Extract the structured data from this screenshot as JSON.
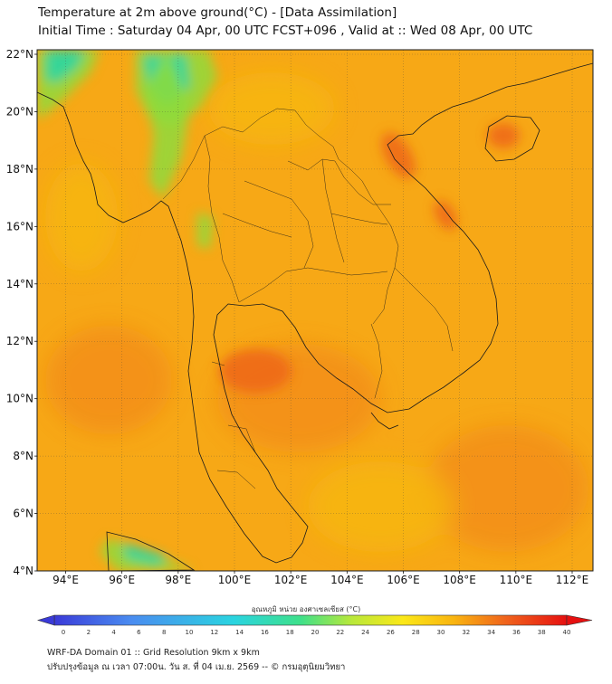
{
  "header": {
    "title_line1": "Temperature at 2m above ground(°C) - [Data Assimilation]",
    "title_line2": "Initial Time : Saturday 04 Apr, 00 UTC FCST+096 , Valid at :: Wed 08 Apr, 00 UTC"
  },
  "map": {
    "lat_labels": [
      "22°N",
      "20°N",
      "18°N",
      "16°N",
      "14°N",
      "12°N",
      "10°N",
      "8°N",
      "6°N",
      "4°N"
    ],
    "lon_labels": [
      "94°E",
      "96°E",
      "98°E",
      "100°E",
      "102°E",
      "104°E",
      "106°E",
      "108°E",
      "110°E",
      "112°E"
    ],
    "land_color": "#f6b60c",
    "sea_color": "#f7a816",
    "hot_color": "#ee6a18",
    "cool_color": "#8fda3c",
    "cold_color": "#2cd6a2"
  },
  "colorbar": {
    "label": "อุณหภูมิ หน่วย องศาเซลเซียส (°C)",
    "ticks": [
      "0",
      "2",
      "4",
      "6",
      "8",
      "10",
      "12",
      "14",
      "16",
      "18",
      "20",
      "22",
      "24",
      "26",
      "28",
      "30",
      "32",
      "34",
      "36",
      "38",
      "40"
    ]
  },
  "footer": {
    "line1": "WRF-DA Domain 01 :: Grid Resolution 9km x 9km",
    "line2": "ปรับปรุงข้อมูล ณ เวลา 07:00น. วัน ส. ที่ 04 เม.ย. 2569 -- © กรมอุตุนิยมวิทยา"
  }
}
